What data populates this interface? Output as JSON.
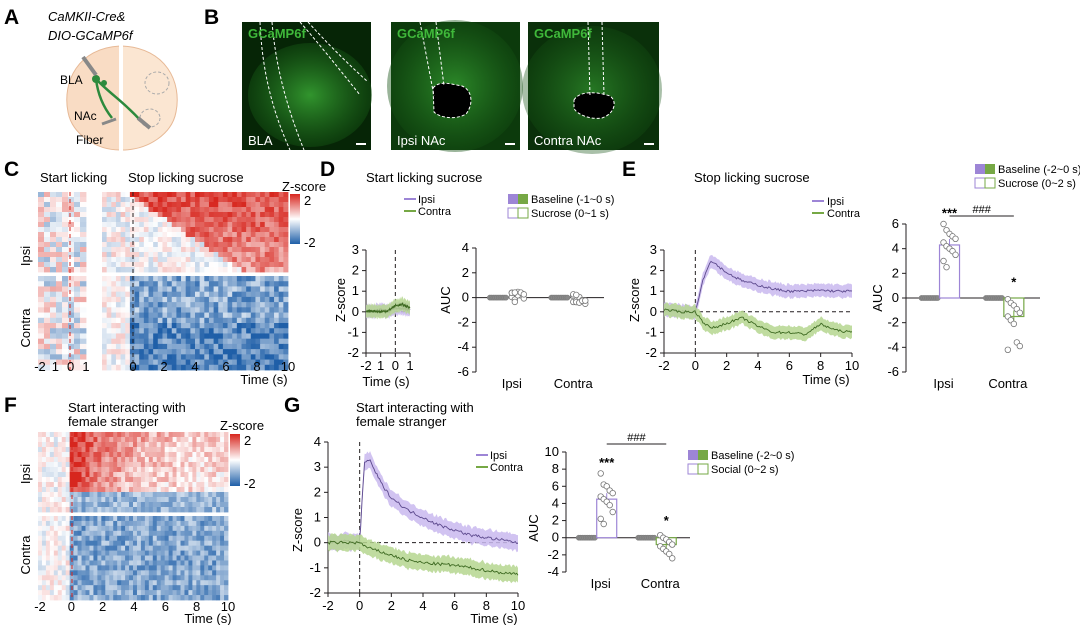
{
  "panels": {
    "A": "A",
    "B": "B",
    "C": "C",
    "D": "D",
    "E": "E",
    "F": "F",
    "G": "G"
  },
  "colors": {
    "ipsi": "#9d85d6",
    "ipsi_band": "#c9b8ee",
    "contra": "#76a845",
    "contra_band": "#b5d68f",
    "heat_red": "#d7261e",
    "heat_blue": "#1f5fa8",
    "fluor": "#3fb83a"
  },
  "panel_a": {
    "line1": "CaMKII-Cre&",
    "line2": "DIO-GCaMP6f",
    "bla": "BLA",
    "nac": "NAc",
    "fiber": "Fiber"
  },
  "panel_b": {
    "images": [
      {
        "top_label": "GCaMP6f",
        "bottom_label": "BLA"
      },
      {
        "top_label": "GCaMP6f",
        "bottom_label": "Ipsi NAc"
      },
      {
        "top_label": "GCaMP6f",
        "bottom_label": "Contra NAc"
      }
    ]
  },
  "panel_c": {
    "title_left": "Start licking",
    "title_right": "Stop licking sucrose",
    "row_ipsi": "Ipsi",
    "row_contra": "Contra",
    "xticks_left": [
      "-2",
      "1",
      "0",
      "1"
    ],
    "xticks_right": [
      "0",
      "2",
      "4",
      "6",
      "8",
      "10"
    ],
    "xlabel": "Time (s)",
    "cbar_title": "Z-score",
    "cbar_max": "2",
    "cbar_min": "-2"
  },
  "panel_d": {
    "title": "Start licking sucrose",
    "legend_ipsi": "Ipsi",
    "legend_contra": "Contra",
    "legend_baseline": "Baseline (-1~0 s)",
    "legend_sucrose": "Sucrose (0~1 s)",
    "trace_yticks": [
      "3",
      "2",
      "1",
      "0",
      "-1",
      "-2"
    ],
    "trace_xticks": [
      "-2",
      "1",
      "0",
      "1"
    ],
    "ylabel": "Z-score",
    "xlabel": "Time (s)",
    "bar_yticks": [
      "4",
      "2",
      "0",
      "-2",
      "-4",
      "-6"
    ],
    "bar_ylabel": "AUC",
    "bar_groups": [
      "Ipsi",
      "Contra"
    ]
  },
  "panel_e": {
    "title": "Stop licking sucrose",
    "legend_ipsi": "Ipsi",
    "legend_contra": "Contra",
    "legend_baseline": "Baseline (-2~0 s)",
    "legend_sucrose": "Sucrose (0~2 s)",
    "trace_yticks": [
      "3",
      "2",
      "1",
      "0",
      "-1",
      "-2"
    ],
    "trace_xticks": [
      "-2",
      "0",
      "2",
      "4",
      "6",
      "8",
      "10"
    ],
    "ylabel": "Z-score",
    "xlabel": "Time (s)",
    "bar_yticks": [
      "6",
      "4",
      "2",
      "0",
      "-2",
      "-4",
      "-6"
    ],
    "bar_ylabel": "AUC",
    "bar_groups": [
      "Ipsi",
      "Contra"
    ],
    "sig_ipsi": "***",
    "sig_contra": "*",
    "sig_between": "###"
  },
  "panel_f": {
    "title_line1": "Start interacting with",
    "title_line2": "female stranger",
    "row_ipsi": "Ipsi",
    "row_contra": "Contra",
    "xticks": [
      "-2",
      "0",
      "2",
      "4",
      "6",
      "8",
      "10"
    ],
    "xlabel": "Time (s)",
    "cbar_title": "Z-score",
    "cbar_max": "2",
    "cbar_min": "-2"
  },
  "panel_g": {
    "title_line1": "Start interacting with",
    "title_line2": "female stranger",
    "legend_ipsi": "Ipsi",
    "legend_contra": "Contra",
    "legend_baseline": "Baseline (-2~0 s)",
    "legend_social": "Social (0~2 s)",
    "trace_yticks": [
      "4",
      "3",
      "2",
      "1",
      "0",
      "-1",
      "-2"
    ],
    "trace_xticks": [
      "-2",
      "0",
      "2",
      "4",
      "6",
      "8",
      "10"
    ],
    "ylabel": "Z-score",
    "xlabel": "Time (s)",
    "bar_yticks": [
      "10",
      "8",
      "6",
      "4",
      "2",
      "0",
      "-2",
      "-4"
    ],
    "bar_ylabel": "AUC",
    "bar_groups": [
      "Ipsi",
      "Contra"
    ],
    "sig_ipsi": "***",
    "sig_contra": "*",
    "sig_between": "###"
  },
  "chart_data": [
    {
      "id": "D_trace",
      "type": "line",
      "title": "Start licking sucrose",
      "xlabel": "Time (s)",
      "ylabel": "Z-score",
      "xlim": [
        -2,
        1
      ],
      "ylim": [
        -2,
        3
      ],
      "series": [
        {
          "name": "Ipsi",
          "x": [
            -2,
            -1.5,
            -1,
            -0.5,
            0,
            0.5,
            1
          ],
          "y": [
            0.05,
            0.02,
            0.1,
            0.0,
            0.2,
            0.15,
            0.1
          ]
        },
        {
          "name": "Contra",
          "x": [
            -2,
            -1.5,
            -1,
            -0.5,
            0,
            0.5,
            1
          ],
          "y": [
            0.0,
            0.05,
            0.0,
            0.05,
            0.3,
            0.35,
            0.2
          ]
        }
      ]
    },
    {
      "id": "D_auc",
      "type": "scatter",
      "ylabel": "AUC",
      "ylim": [
        -6,
        4
      ],
      "categories": [
        "Ipsi",
        "Contra"
      ],
      "series": [
        {
          "name": "Baseline (-1~0 s)",
          "values": [
            0.0,
            0.0
          ]
        },
        {
          "name": "Sucrose (0~1 s)",
          "values": [
            0.1,
            -0.1
          ]
        }
      ]
    },
    {
      "id": "E_trace",
      "type": "line",
      "title": "Stop licking sucrose",
      "xlabel": "Time (s)",
      "ylabel": "Z-score",
      "xlim": [
        -2,
        10
      ],
      "ylim": [
        -2,
        3
      ],
      "series": [
        {
          "name": "Ipsi",
          "x": [
            -2,
            -1,
            0,
            0.5,
            1,
            1.5,
            2,
            3,
            4,
            5,
            6,
            7,
            8,
            9,
            10
          ],
          "y": [
            0.1,
            0.05,
            0.0,
            1.6,
            2.5,
            2.2,
            1.9,
            1.5,
            1.3,
            1.1,
            1.0,
            1.0,
            1.05,
            1.0,
            1.0
          ]
        },
        {
          "name": "Contra",
          "x": [
            -2,
            -1,
            0,
            0.5,
            1,
            1.5,
            2,
            3,
            4,
            5,
            6,
            7,
            8,
            9,
            10
          ],
          "y": [
            0.1,
            0.0,
            0.0,
            -0.5,
            -0.8,
            -0.7,
            -0.55,
            -0.3,
            -0.7,
            -1.0,
            -1.0,
            -1.1,
            -0.6,
            -0.9,
            -1.0
          ]
        }
      ]
    },
    {
      "id": "E_auc",
      "type": "bar",
      "ylabel": "AUC",
      "ylim": [
        -6,
        6
      ],
      "categories": [
        "Ipsi",
        "Contra"
      ],
      "series": [
        {
          "name": "Baseline (-2~0 s)",
          "values": [
            0.0,
            0.0
          ]
        },
        {
          "name": "Sucrose (0~2 s)",
          "values": [
            4.3,
            -1.5
          ]
        }
      ],
      "points_sucrose_ipsi": [
        6.0,
        5.5,
        5.2,
        5.0,
        4.8,
        4.5,
        4.2,
        4.0,
        3.8,
        3.5,
        3.0,
        2.5
      ],
      "points_sucrose_contra": [
        -0.1,
        -0.4,
        -0.6,
        -0.9,
        -1.2,
        -1.5,
        -1.8,
        -2.1,
        -3.6,
        -3.9,
        -4.2
      ]
    },
    {
      "id": "G_trace",
      "type": "line",
      "title": "Start interacting with female stranger",
      "xlabel": "Time (s)",
      "ylabel": "Z-score",
      "xlim": [
        -2,
        10
      ],
      "ylim": [
        -2,
        4
      ],
      "series": [
        {
          "name": "Ipsi",
          "x": [
            -2,
            -1,
            0,
            0.3,
            0.6,
            1,
            1.5,
            2,
            3,
            4,
            5,
            6,
            7,
            8,
            9,
            10
          ],
          "y": [
            0.0,
            0.05,
            0.0,
            3.2,
            3.3,
            2.8,
            2.2,
            1.8,
            1.3,
            1.0,
            0.7,
            0.5,
            0.3,
            0.2,
            0.1,
            0.0
          ]
        },
        {
          "name": "Contra",
          "x": [
            -2,
            -1,
            0,
            0.5,
            1,
            2,
            3,
            4,
            5,
            6,
            7,
            8,
            9,
            10
          ],
          "y": [
            0.0,
            0.0,
            0.0,
            -0.2,
            -0.3,
            -0.5,
            -0.7,
            -0.8,
            -0.85,
            -0.9,
            -1.0,
            -1.1,
            -1.2,
            -1.25
          ]
        }
      ]
    },
    {
      "id": "G_auc",
      "type": "bar",
      "ylabel": "AUC",
      "ylim": [
        -4,
        10
      ],
      "categories": [
        "Ipsi",
        "Contra"
      ],
      "series": [
        {
          "name": "Baseline (-2~0 s)",
          "values": [
            0.0,
            0.0
          ]
        },
        {
          "name": "Social (0~2 s)",
          "values": [
            4.5,
            -0.8
          ]
        }
      ],
      "points_social_ipsi": [
        7.5,
        6.2,
        6.0,
        5.5,
        5.2,
        4.8,
        4.5,
        4.2,
        3.8,
        3.0,
        2.2,
        1.6
      ],
      "points_social_contra": [
        0.3,
        0.0,
        -0.2,
        -0.5,
        -0.8,
        -1.0,
        -1.3,
        -1.6,
        -1.9,
        -2.4
      ]
    }
  ]
}
